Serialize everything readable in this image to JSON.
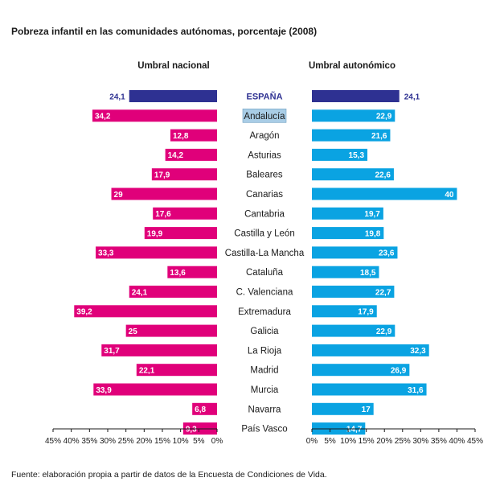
{
  "chart_data": {
    "type": "bar",
    "title": "Pobreza infantil en las comunidades autónomas, porcentaje (2008)",
    "categories": [
      "ESPAÑA",
      "Andalucía",
      "Aragón",
      "Asturias",
      "Baleares",
      "Canarias",
      "Cantabria",
      "Castilla y León",
      "Castilla-La Mancha",
      "Cataluña",
      "C. Valenciana",
      "Extremadura",
      "Galicia",
      "La Rioja",
      "Madrid",
      "Murcia",
      "Navarra",
      "País Vasco"
    ],
    "highlighted_category": "Andalucía",
    "series": [
      {
        "name": "Umbral nacional",
        "labels": [
          "24,1",
          "34,2",
          "12,8",
          "14,2",
          "17,9",
          "29",
          "17,6",
          "19,9",
          "33,3",
          "13,6",
          "24,1",
          "39,2",
          "25",
          "31,7",
          "22,1",
          "33,9",
          "6,8",
          "9,3"
        ],
        "values": [
          24.1,
          34.2,
          12.8,
          14.2,
          17.9,
          29,
          17.6,
          19.9,
          33.3,
          13.6,
          24.1,
          39.2,
          25,
          31.7,
          22.1,
          33.9,
          6.8,
          9.3
        ]
      },
      {
        "name": "Umbral autonómico",
        "labels": [
          "24,1",
          "22,9",
          "21,6",
          "15,3",
          "22,6",
          "40",
          "19,7",
          "19,8",
          "23,6",
          "18,5",
          "22,7",
          "17,9",
          "22,9",
          "32,3",
          "26,9",
          "31,6",
          "17",
          "14,7"
        ],
        "values": [
          24.1,
          22.9,
          21.6,
          15.3,
          22.6,
          40,
          19.7,
          19.8,
          23.6,
          18.5,
          22.7,
          17.9,
          22.9,
          32.3,
          26.9,
          31.6,
          17,
          14.7
        ]
      }
    ],
    "xlim": [
      0,
      45
    ],
    "left_ticks": [
      "45%",
      "40%",
      "35%",
      "30%",
      "25%",
      "20%",
      "15%",
      "10%",
      "5%",
      "0%"
    ],
    "right_ticks": [
      "0%",
      "5%",
      "10%",
      "15%",
      "20%",
      "25%",
      "30%",
      "35%",
      "40%",
      "45%"
    ],
    "colors": {
      "left_bar": "#e0007a",
      "right_bar": "#0aa3e2",
      "spain_bar": "#2e3192",
      "spain_label": "#2e3192",
      "highlight_bg": "#a9cde6"
    }
  },
  "source": "Fuente: elaboración propia a partir de datos de la Encuesta de Condiciones de Vida."
}
